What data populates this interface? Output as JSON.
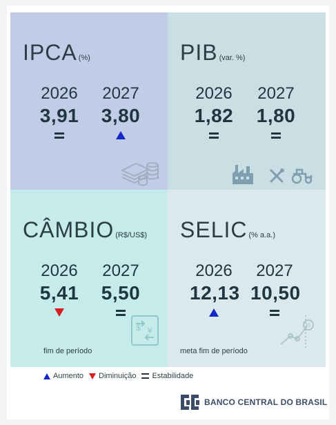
{
  "ipca": {
    "title": "IPCA",
    "unit": "(%)",
    "years": [
      "2026",
      "2027"
    ],
    "values": [
      "3,91",
      "3,80"
    ],
    "trends": [
      "stable",
      "up"
    ],
    "icon": "coins-icon"
  },
  "pib": {
    "title": "PIB",
    "unit": "(var. %)",
    "years": [
      "2026",
      "2027"
    ],
    "values": [
      "1,82",
      "1,80"
    ],
    "trends": [
      "stable",
      "stable"
    ],
    "icons": [
      "factory-icon",
      "tools-icon",
      "tractor-icon"
    ]
  },
  "cambio": {
    "title": "CÂMBIO",
    "unit": "(R$/US$)",
    "years": [
      "2026",
      "2027"
    ],
    "values": [
      "5,41",
      "5,50"
    ],
    "trends": [
      "down",
      "stable"
    ],
    "note": "fim de período",
    "icon": "currency-exchange-icon"
  },
  "selic": {
    "title": "SELIC",
    "unit": "(% a.a.)",
    "years": [
      "2026",
      "2027"
    ],
    "values": [
      "12,13",
      "10,50"
    ],
    "trends": [
      "up",
      "stable"
    ],
    "note": "meta fim de período",
    "icon": "percent-chart-icon"
  },
  "legend": {
    "up": "Aumento",
    "down": "Diminuição",
    "stable": "Estabilidade"
  },
  "logo": {
    "name": "BANCO CENTRAL DO BRASIL"
  },
  "colors": {
    "up": "#1427c8",
    "down": "#d81e1e",
    "stable": "#1f3640",
    "ipca_bg": "#c3cce6",
    "pib_bg": "#c9dfe4",
    "cambio_bg": "#c6ebeb",
    "selic_bg": "#dce9ec"
  }
}
